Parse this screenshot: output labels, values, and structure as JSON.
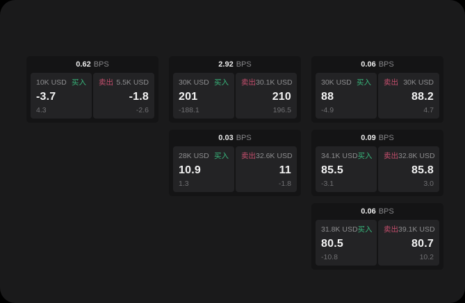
{
  "labels": {
    "bps_unit": "BPS",
    "buy": "买入",
    "sell": "卖出"
  },
  "colors": {
    "page_background": "#1a1a1b",
    "card_header_background": "#141415",
    "panel_background": "#232325",
    "buy_green": "#38b77c",
    "sell_red": "#c64f6e"
  },
  "cards": [
    {
      "bps": "0.62",
      "buy": {
        "size": "10K USD",
        "price": "-3.7",
        "sub": "4.3"
      },
      "sell": {
        "size": "5.5K USD",
        "price": "-1.8",
        "sub": "-2.6"
      }
    },
    {
      "bps": "2.92",
      "buy": {
        "size": "30K USD",
        "price": "201",
        "sub": "-188.1"
      },
      "sell": {
        "size": "30.1K USD",
        "price": "210",
        "sub": "196.5"
      }
    },
    {
      "bps": "0.06",
      "buy": {
        "size": "30K USD",
        "price": "88",
        "sub": "-4.9"
      },
      "sell": {
        "size": "30K USD",
        "price": "88.2",
        "sub": "4.7"
      }
    },
    {
      "bps": "0.03",
      "buy": {
        "size": "28K USD",
        "price": "10.9",
        "sub": "1.3"
      },
      "sell": {
        "size": "32.6K USD",
        "price": "11",
        "sub": "-1.8"
      }
    },
    {
      "bps": "0.09",
      "buy": {
        "size": "34.1K USD",
        "price": "85.5",
        "sub": "-3.1"
      },
      "sell": {
        "size": "32.8K USD",
        "price": "85.8",
        "sub": "3.0"
      }
    },
    {
      "bps": "0.06",
      "buy": {
        "size": "31.8K USD",
        "price": "80.5",
        "sub": "-10.8"
      },
      "sell": {
        "size": "39.1K USD",
        "price": "80.7",
        "sub": "10.2"
      }
    }
  ]
}
